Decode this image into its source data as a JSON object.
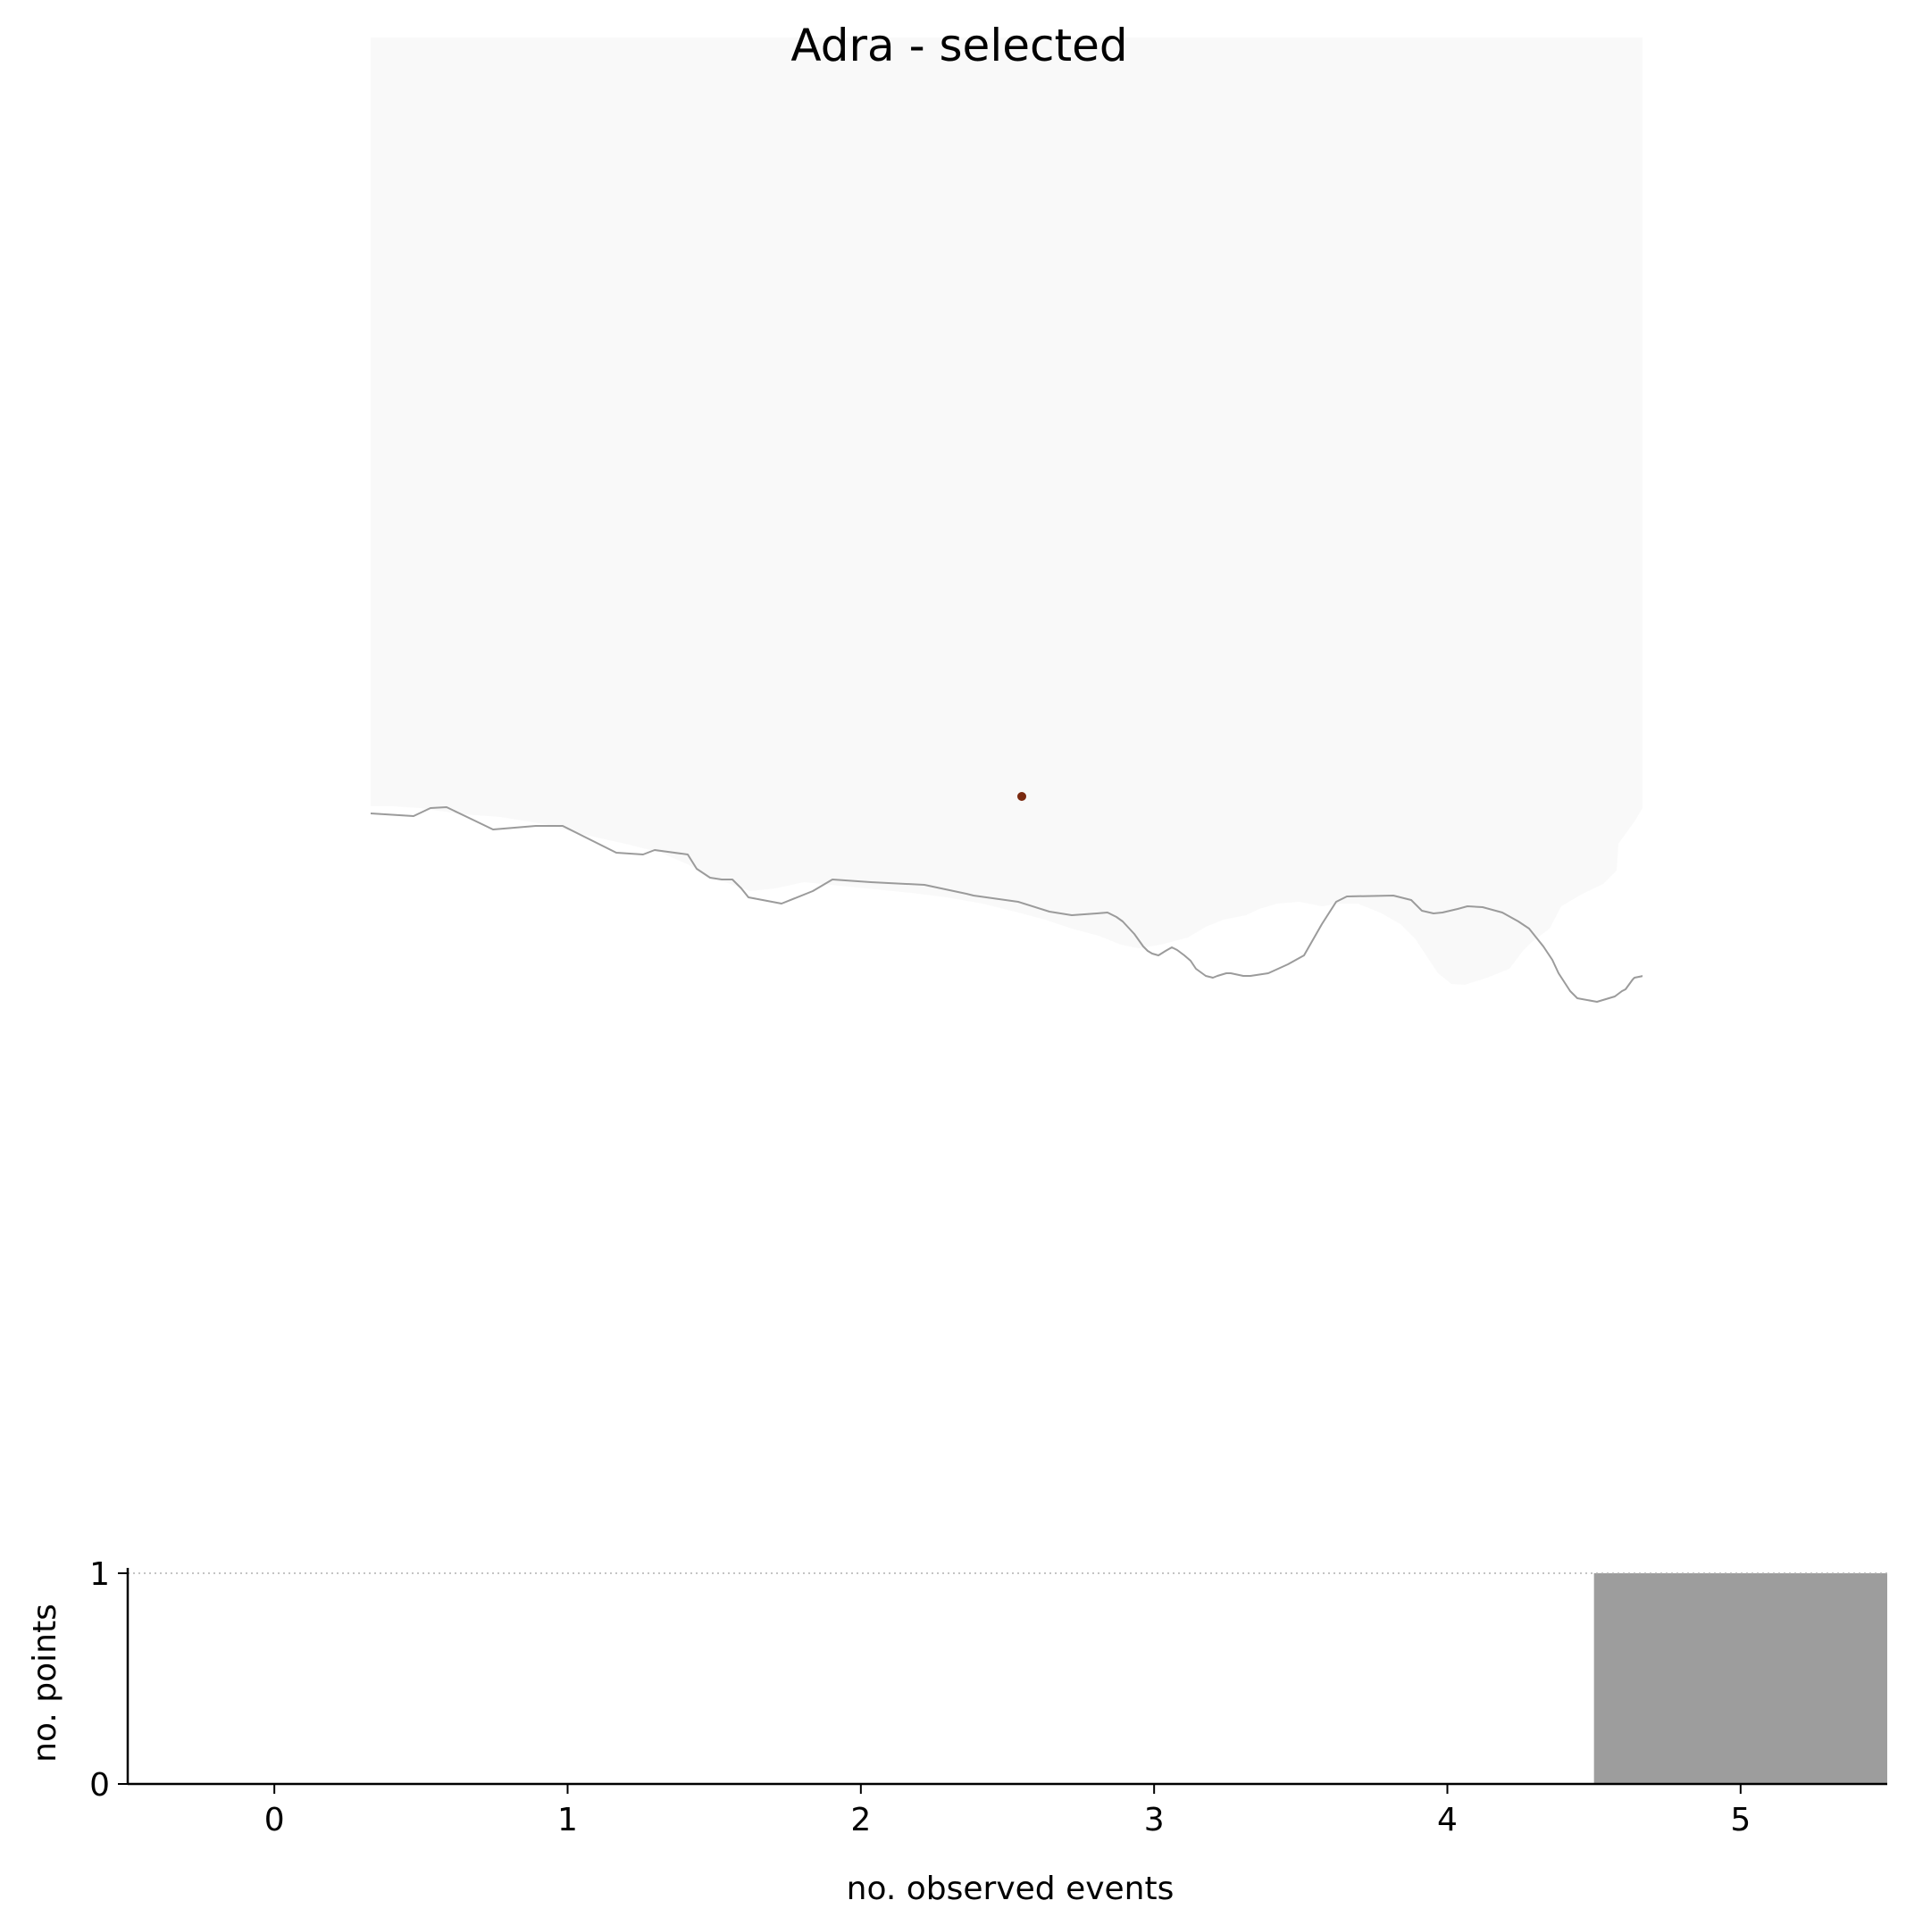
{
  "map": {
    "title": "Adra - selected",
    "land_color": "#f9f9f9",
    "coastline_color": "#9b9b9b",
    "marker_color": "#7a2a10"
  },
  "chart_data": {
    "type": "bar",
    "title": "",
    "xlabel": "no. observed events",
    "ylabel": "no. points",
    "categories": [
      0,
      1,
      2,
      3,
      4,
      5
    ],
    "values": [
      0,
      0,
      0,
      0,
      0,
      1
    ],
    "xlim": [
      -0.5,
      5.5
    ],
    "ylim": [
      0,
      1
    ],
    "xticks": [
      "0",
      "1",
      "2",
      "3",
      "4",
      "5"
    ],
    "yticks": [
      "0",
      "1"
    ],
    "bar_color": "#9d9d9d",
    "reference_line": {
      "y": 1,
      "style": "dotted"
    },
    "grid": false
  }
}
